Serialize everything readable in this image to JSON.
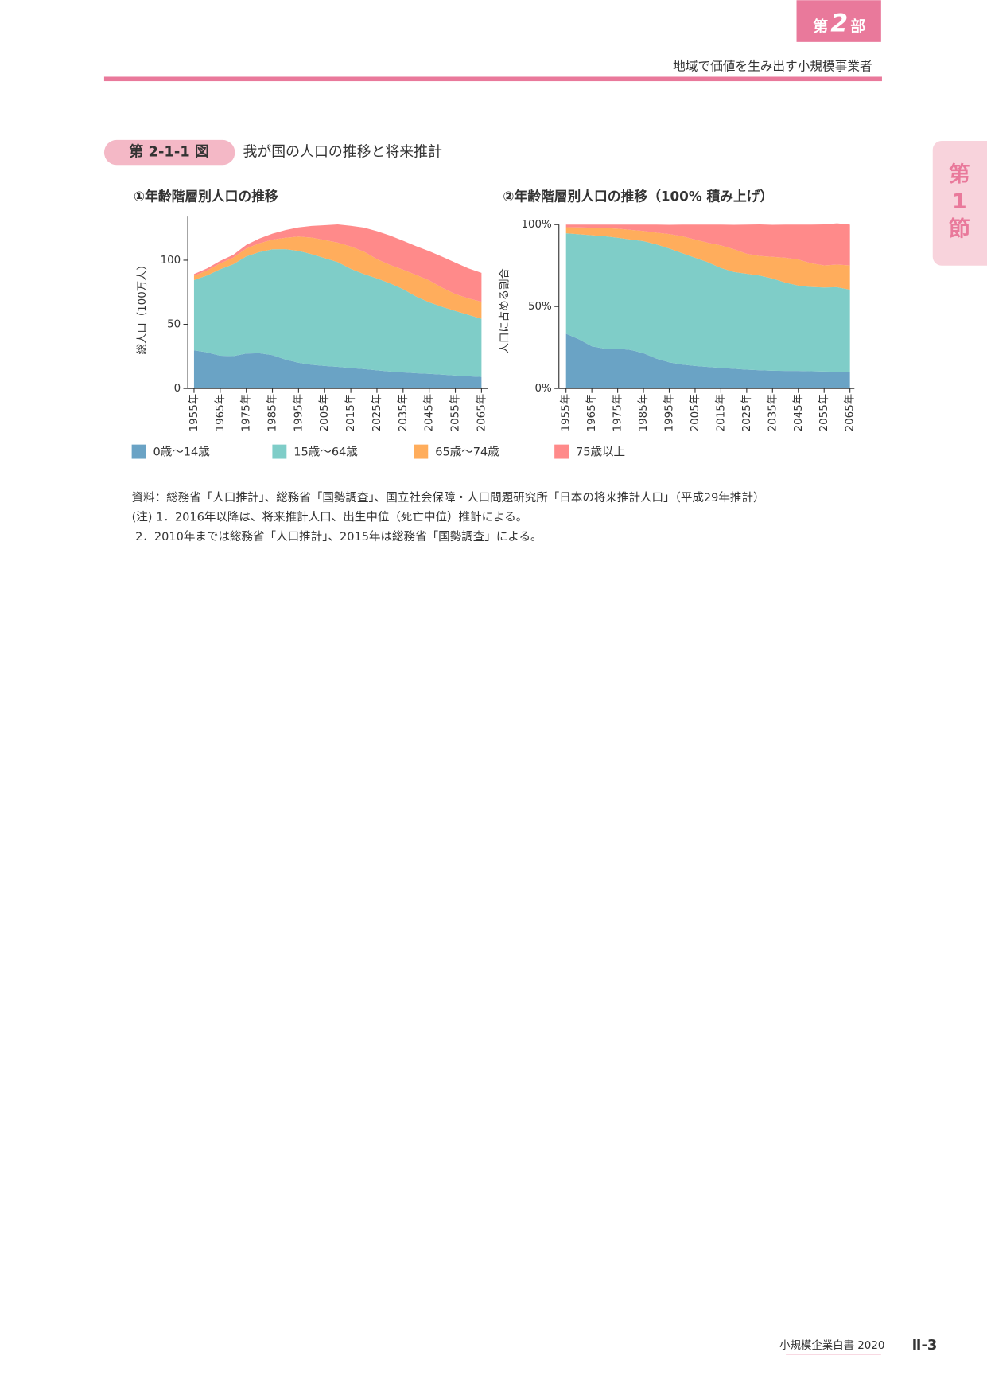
{
  "header": {
    "part_prefix": "第",
    "part_number": "2",
    "part_suffix": "部",
    "subtitle": "地域で価値を生み出す小規模事業者"
  },
  "side_tab": [
    "第",
    "1",
    "節"
  ],
  "figure": {
    "label": "第 2-1-1 図",
    "title": "我が国の人口の推移と将来推計"
  },
  "chart_data": [
    {
      "type": "area",
      "title": "①年齢階層別人口の推移",
      "y_label": "総人口（100万人）",
      "categories": [
        "1955年",
        null,
        "1965年",
        null,
        "1975年",
        null,
        "1985年",
        null,
        "1995年",
        null,
        "2005年",
        null,
        "2015年",
        null,
        "2025年",
        null,
        "2035年",
        null,
        "2045年",
        null,
        "2055年",
        null,
        "2065年"
      ],
      "ylim": [
        0,
        134
      ],
      "yticks": [
        0,
        50,
        100
      ],
      "series": [
        {
          "name": "0歳～14歳",
          "color": "#6aa3c5",
          "values": [
            29.8,
            28.1,
            25.5,
            25.2,
            27.2,
            27.5,
            26.0,
            22.5,
            20.0,
            18.5,
            17.5,
            16.8,
            15.9,
            15.1,
            14.1,
            13.2,
            12.5,
            11.9,
            11.4,
            10.8,
            10.1,
            9.5,
            9.0
          ]
        },
        {
          "name": "15歳～64歳",
          "color": "#7fcdc8",
          "values": [
            54.7,
            60.0,
            67.4,
            71.6,
            75.8,
            78.8,
            82.5,
            86.1,
            87.3,
            86.2,
            84.1,
            81.7,
            77.3,
            74.1,
            71.7,
            68.8,
            64.9,
            59.8,
            55.8,
            52.8,
            50.3,
            47.9,
            45.3
          ]
        },
        {
          "name": "65歳～74歳",
          "color": "#ffad5c",
          "values": [
            3.3,
            3.9,
            4.6,
            5.2,
            6.1,
            6.9,
            7.5,
            8.9,
            11.1,
            13.0,
            14.1,
            15.2,
            17.5,
            17.5,
            15.0,
            14.3,
            15.2,
            16.8,
            17.0,
            14.9,
            13.2,
            12.8,
            13.3
          ]
        },
        {
          "name": "75歳以上",
          "color": "#ff8a8a",
          "values": [
            1.4,
            1.6,
            1.9,
            2.2,
            2.8,
            3.7,
            4.7,
            6.0,
            7.2,
            9.0,
            11.6,
            14.2,
            16.1,
            18.7,
            21.8,
            22.9,
            22.6,
            22.4,
            22.8,
            24.2,
            24.5,
            23.4,
            22.5
          ]
        }
      ]
    },
    {
      "type": "area",
      "title": "②年齢階層別人口の推移（100% 積み上げ）",
      "y_label": "人口に占める割合",
      "categories": [
        "1955年",
        null,
        "1965年",
        null,
        "1975年",
        null,
        "1985年",
        null,
        "1995年",
        null,
        "2005年",
        null,
        "2015年",
        null,
        "2025年",
        null,
        "2035年",
        null,
        "2045年",
        null,
        "2055年",
        null,
        "2065年"
      ],
      "ylim": [
        0,
        100
      ],
      "yticks": [
        {
          "value": 0,
          "label": "0%"
        },
        {
          "value": 50,
          "label": "50%"
        },
        {
          "value": 100,
          "label": "100%"
        }
      ],
      "series": [
        {
          "color": "#6aa3c5",
          "values": [
            33.4,
            30.0,
            25.7,
            24.2,
            24.3,
            23.5,
            21.5,
            18.2,
            15.9,
            14.6,
            13.7,
            13.1,
            12.5,
            12.0,
            11.5,
            11.1,
            10.8,
            10.7,
            10.7,
            10.5,
            10.3,
            10.2,
            10.0
          ]
        },
        {
          "color": "#7fcdc8",
          "values": [
            61.3,
            64.1,
            67.8,
            68.7,
            67.7,
            67.4,
            68.4,
            69.7,
            69.5,
            68.0,
            66.1,
            63.9,
            61.0,
            59.1,
            58.5,
            57.8,
            56.3,
            53.9,
            52.1,
            51.4,
            51.3,
            51.6,
            50.3
          ]
        },
        {
          "color": "#ffad5c",
          "values": [
            3.7,
            4.2,
            4.6,
            5.0,
            5.5,
            5.9,
            6.2,
            7.2,
            8.8,
            10.3,
            11.1,
            11.9,
            13.8,
            13.9,
            12.2,
            12.0,
            13.2,
            15.2,
            15.9,
            14.5,
            13.5,
            13.8,
            14.8
          ]
        },
        {
          "color": "#ff8a8a",
          "values": [
            1.6,
            1.7,
            1.9,
            2.1,
            2.5,
            3.2,
            3.9,
            4.9,
            5.7,
            7.1,
            9.1,
            11.1,
            12.7,
            14.9,
            17.8,
            19.2,
            19.6,
            20.2,
            21.3,
            23.6,
            25.0,
            25.2,
            24.9
          ]
        }
      ]
    }
  ],
  "notes": [
    "資料：総務省「人口推計」、総務省「国勢調査」、国立社会保障・人口問題研究所「日本の将来推計人口」（平成29年推計）",
    "(注) 1．2016年以降は、将来推計人口、出生中位（死亡中位）推計による。",
    "2．2010年までは総務省「人口推計」、2015年は総務省「国勢調査」による。"
  ],
  "footer": {
    "book": "小規模企業白書 2020",
    "page": "Ⅱ-3"
  }
}
